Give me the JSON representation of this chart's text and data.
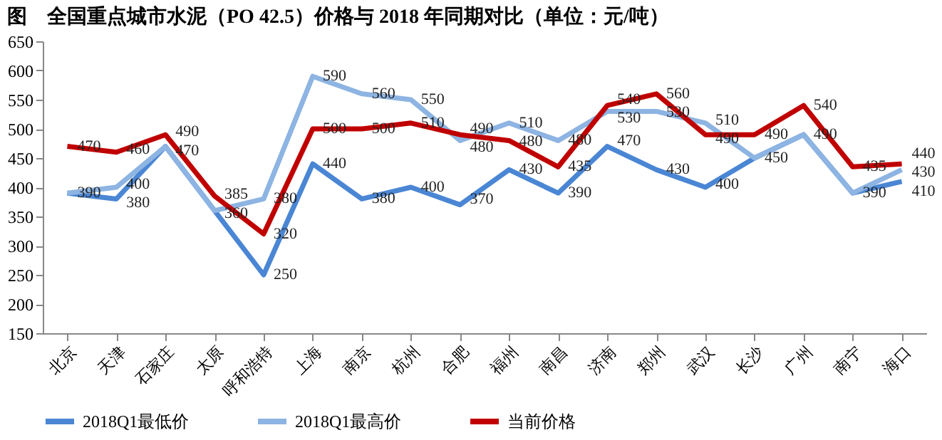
{
  "chart_data": {
    "type": "line",
    "title": "图　全国重点城市水泥（PO 42.5）价格与 2018 年同期对比（单位：元/吨）",
    "categories": [
      "北京",
      "天津",
      "石家庄",
      "太原",
      "呼和浩特",
      "上海",
      "南京",
      "杭州",
      "合肥",
      "福州",
      "南昌",
      "济南",
      "郑州",
      "武汉",
      "长沙",
      "广州",
      "南宁",
      "海口"
    ],
    "series": [
      {
        "name": "2018Q1最低价",
        "color": "#4a86d4",
        "values": [
          390,
          380,
          470,
          360,
          250,
          440,
          380,
          400,
          370,
          430,
          390,
          470,
          430,
          400,
          450,
          490,
          390,
          410
        ]
      },
      {
        "name": "2018Q1最高价",
        "color": "#8db4e2",
        "values": [
          390,
          400,
          470,
          360,
          380,
          590,
          560,
          550,
          480,
          510,
          480,
          530,
          530,
          510,
          450,
          490,
          390,
          430
        ],
        "value_labels": [
          null,
          "400",
          null,
          null,
          "380",
          "590",
          "560",
          "550",
          "480",
          "510",
          "480",
          "530",
          "530",
          "510",
          null,
          null,
          null,
          "430"
        ]
      },
      {
        "name": "当前价格",
        "color": "#c00000",
        "values": [
          470,
          460,
          490,
          385,
          320,
          500,
          500,
          510,
          490,
          480,
          435,
          540,
          560,
          490,
          490,
          540,
          435,
          440
        ]
      }
    ],
    "ylim": [
      150,
      650
    ],
    "yticks": [
      150,
      200,
      250,
      300,
      350,
      400,
      450,
      500,
      550,
      600,
      650
    ],
    "data_labels": true,
    "grid": false,
    "legend": "bottom",
    "marker": "none"
  }
}
